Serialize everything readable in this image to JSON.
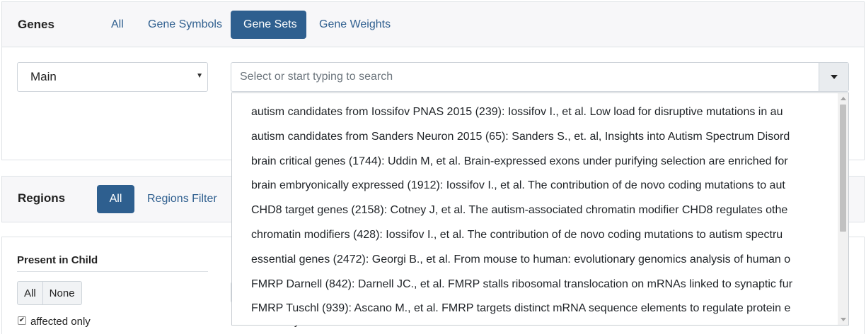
{
  "genes": {
    "title": "Genes",
    "tabs": [
      "All",
      "Gene Symbols",
      "Gene Sets",
      "Gene Weights"
    ],
    "active_tab": "Gene Sets"
  },
  "gene_sets": {
    "collection_value": "Main",
    "search_placeholder": "Select or start typing to search",
    "options": [
      "autism candidates from Iossifov PNAS 2015 (239): Iossifov I., et al. Low load for disruptive mutations in au",
      "autism candidates from Sanders Neuron 2015 (65): Sanders S., et. al, Insights into Autism Spectrum Disord",
      "brain critical genes (1744): Uddin M, et al. Brain-expressed exons under purifying selection are enriched for",
      "brain embryonically expressed (1912): Iossifov I., et al. The contribution of de novo coding mutations to aut",
      "CHD8 target genes (2158): Cotney J, et al. The autism-associated chromatin modifier CHD8 regulates othe",
      "chromatin modifiers (428): Iossifov I., et al. The contribution of de novo coding mutations to autism spectru",
      "essential genes (2472): Georgi B., et al. From mouse to human: evolutionary genomics analysis of human o",
      "FMRP Darnell (842): Darnell JC., et al. FMRP stalls ribosomal translocation on mRNAs linked to synaptic fur",
      "FMRP Tuschl (939): Ascano M., et al. FMRP targets distinct mRNA sequence elements to regulate protein e"
    ]
  },
  "regions": {
    "title": "Regions",
    "tabs": [
      "All",
      "Regions Filter"
    ],
    "active_tab": "All"
  },
  "present_in_child": {
    "title": "Present in Child",
    "buttons": [
      "All",
      "None"
    ],
    "checkboxes": [
      {
        "label": "affected only",
        "checked": true
      },
      {
        "label": "mother only",
        "checked": false
      }
    ]
  }
}
